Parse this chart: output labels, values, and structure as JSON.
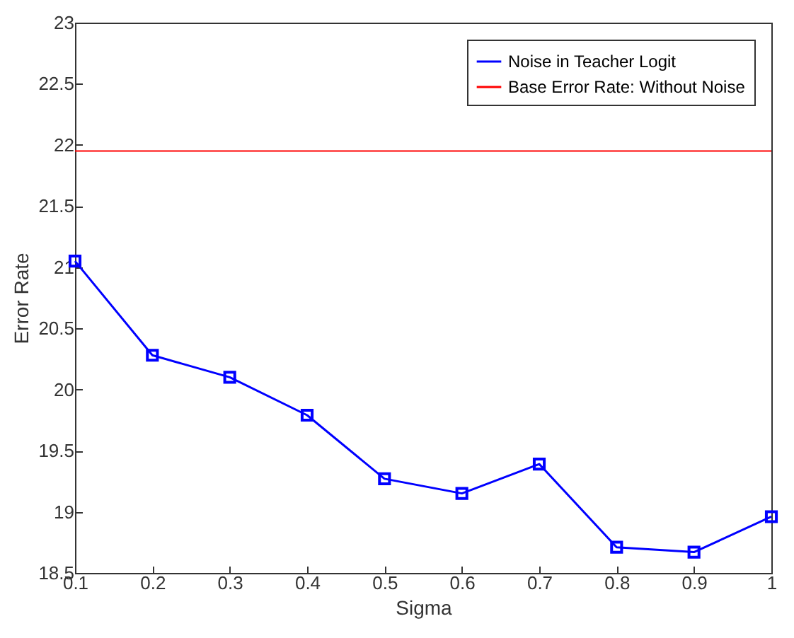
{
  "chart_data": {
    "type": "line",
    "xlabel": "Sigma",
    "ylabel": "Error Rate",
    "x": [
      0.1,
      0.2,
      0.3,
      0.4,
      0.5,
      0.6,
      0.7,
      0.8,
      0.9,
      1
    ],
    "series": [
      {
        "name": "Noise in Teacher Logit",
        "color": "#0000ff",
        "values": [
          21.05,
          20.28,
          20.1,
          19.79,
          19.27,
          19.15,
          19.39,
          18.71,
          18.67,
          18.96
        ]
      }
    ],
    "ref_lines": [
      {
        "axis": "y",
        "value": 21.95,
        "label": "Base Error Rate: Without Noise",
        "color": "#ff0000"
      }
    ],
    "xlim": [
      0.1,
      1
    ],
    "xticks": [
      0.1,
      0.2,
      0.3,
      0.4,
      0.5,
      0.6,
      0.7,
      0.8,
      0.9,
      1
    ],
    "ylim": [
      18.5,
      23
    ],
    "yticks": [
      18.5,
      19,
      19.5,
      20,
      20.5,
      21,
      21.5,
      22,
      22.5,
      23
    ],
    "grid": false,
    "legend": "top right",
    "marker": "square",
    "line_style": "solid"
  }
}
